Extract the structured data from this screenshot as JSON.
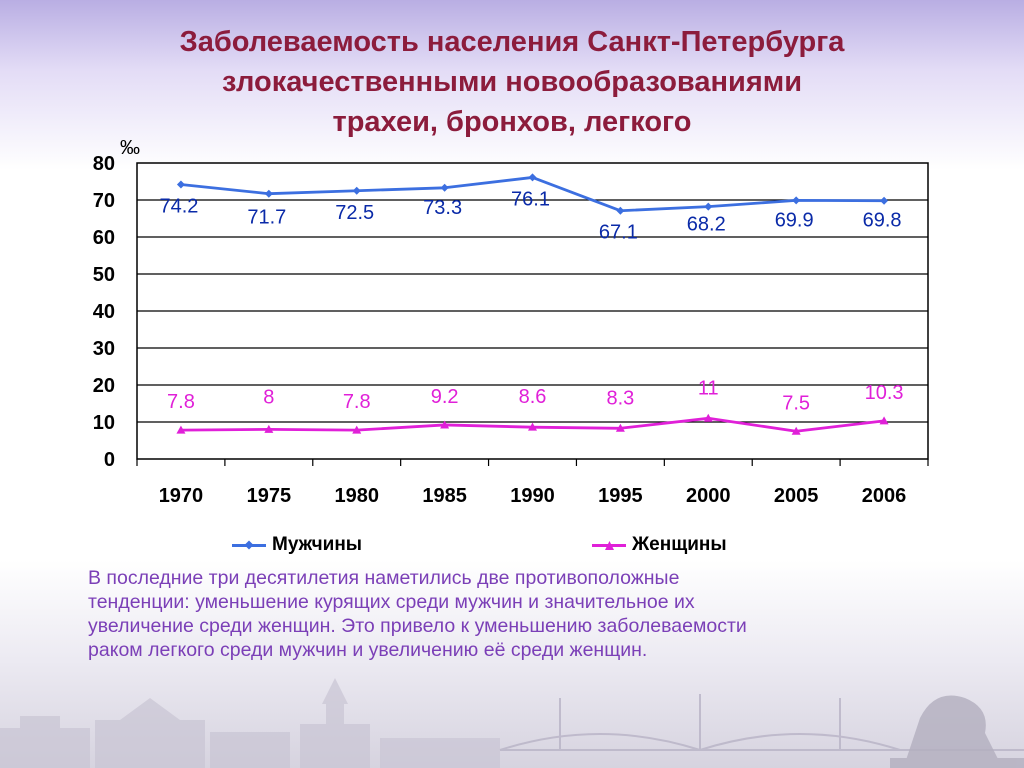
{
  "title": {
    "line1": "Заболеваемость населения Санкт-Петербурга",
    "line2": "злокачественными новообразованиями",
    "line3": "трахеи, бронхов, легкого"
  },
  "chart_data": {
    "type": "line",
    "unit_label": "‰",
    "categories": [
      "1970",
      "1975",
      "1980",
      "1985",
      "1990",
      "1995",
      "2000",
      "2005",
      "2006"
    ],
    "ylim": [
      0,
      80
    ],
    "yticks": [
      0,
      10,
      20,
      30,
      40,
      50,
      60,
      70,
      80
    ],
    "grid": true,
    "legend_position": "bottom",
    "series": [
      {
        "name": "Мужчины",
        "color": "#3c6fe0",
        "label_color": "#0a2aa8",
        "marker": "diamond",
        "values": [
          74.2,
          71.7,
          72.5,
          73.3,
          76.1,
          67.1,
          68.2,
          69.9,
          69.8
        ],
        "labels": [
          "74.2",
          "71.7",
          "72.5",
          "73.3",
          "76.1",
          "67.1",
          "68.2",
          "69.9",
          "69.8"
        ]
      },
      {
        "name": "Женщины",
        "color": "#e020d8",
        "label_color": "#e020d8",
        "marker": "triangle",
        "values": [
          7.8,
          8,
          7.8,
          9.2,
          8.6,
          8.3,
          11,
          7.5,
          10.3
        ],
        "labels": [
          "7.8",
          "8",
          "7.8",
          "9.2",
          "8.6",
          "8.3",
          "11",
          "7.5",
          "10.3"
        ]
      }
    ]
  },
  "caption": {
    "line1": "В последние три десятилетия наметились две противоположные",
    "line2": "тенденции: уменьшение курящих среди мужчин и значительное их",
    "line3": "увеличение среди женщин. Это привело к уменьшению заболеваемости",
    "line4": "раком легкого среди мужчин и увеличению её среди женщин."
  }
}
